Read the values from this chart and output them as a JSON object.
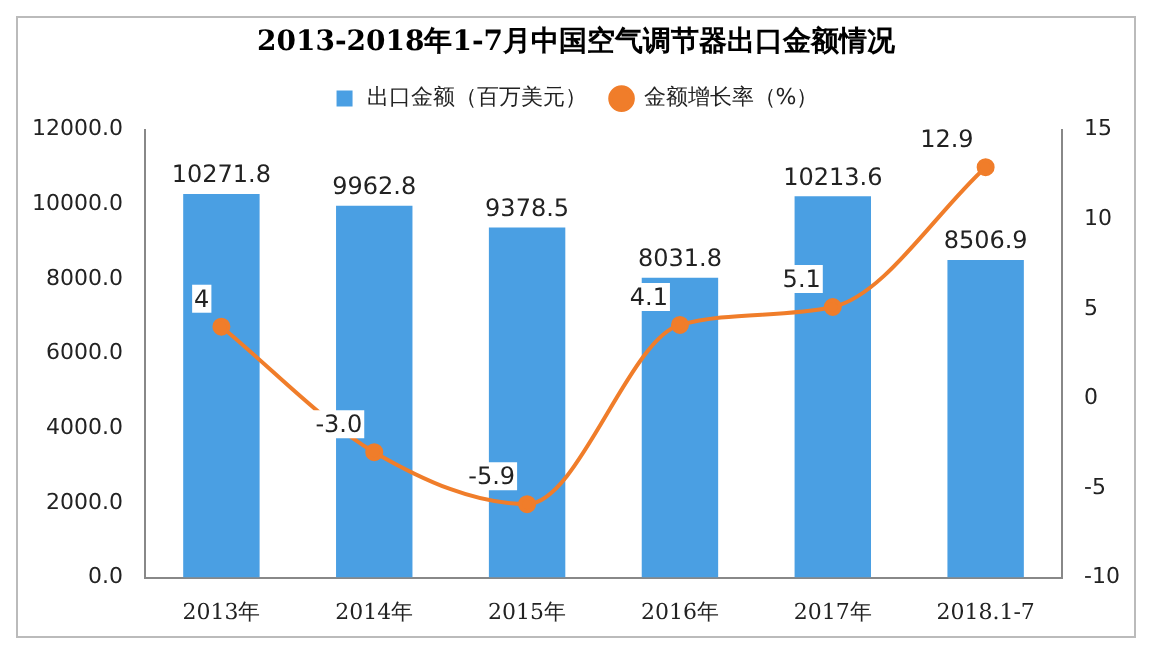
{
  "chart_data": {
    "type": "bar",
    "title": "2013-2018年1-7月中国空气调节器出口金额情况",
    "categories": [
      "2013年",
      "2014年",
      "2015年",
      "2016年",
      "2017年",
      "2018.1-7"
    ],
    "series": [
      {
        "name": "出口金额（百万美元）",
        "color": "#4a9fe3",
        "values": [
          10271.8,
          9962.8,
          9378.5,
          8031.8,
          10213.6,
          8506.9
        ],
        "value_labels": [
          "10271.8",
          "9962.8",
          "9378.5",
          "8031.8",
          "10213.6",
          "8506.9"
        ]
      },
      {
        "name": "金额增长率（%）",
        "type": "line",
        "axis": "y2",
        "color": "#f07d2a",
        "values": [
          4,
          -3.0,
          -5.9,
          4.1,
          5.1,
          12.9
        ],
        "value_labels": [
          "4",
          "-3.0",
          "-5.9",
          "4.1",
          "5.1",
          "12.9"
        ]
      }
    ],
    "ylim": [
      0,
      12000
    ],
    "yticks": [
      {
        "value": 0,
        "label": "0.0"
      },
      {
        "value": 2000,
        "label": "2000.0"
      },
      {
        "value": 4000,
        "label": "4000.0"
      },
      {
        "value": 6000,
        "label": "6000.0"
      },
      {
        "value": 8000,
        "label": "8000.0"
      },
      {
        "value": 10000,
        "label": "10000.0"
      },
      {
        "value": 12000,
        "label": "12000.0"
      }
    ],
    "y2lim": [
      -10,
      15
    ],
    "y2ticks": [
      -10,
      -5,
      0,
      5,
      10,
      15
    ],
    "legend": "top",
    "grid": false,
    "marker": "circle",
    "line_style": "solid"
  }
}
